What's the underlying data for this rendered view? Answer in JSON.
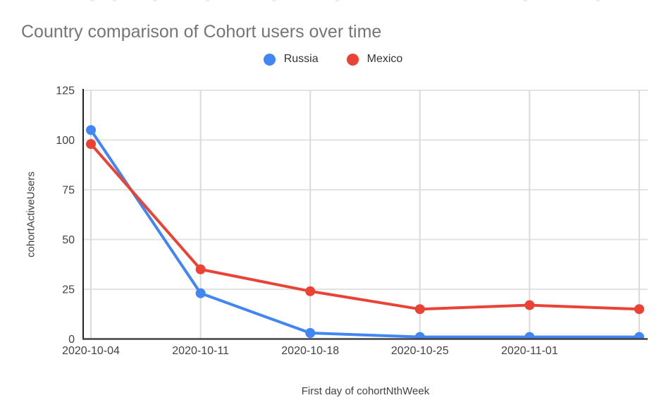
{
  "page": {
    "background": "#ffffff"
  },
  "chart": {
    "title": "Country comparison of Cohort users over time",
    "title_color": "#757575",
    "x_axis_title": "First day of cohortNthWeek",
    "y_axis_title": "cohortActiveUsers"
  },
  "legend": {
    "position": "top-center",
    "items": [
      {
        "label": "Russia",
        "color": "#4285f4"
      },
      {
        "label": "Mexico",
        "color": "#ea4335"
      }
    ]
  },
  "chart_data": {
    "type": "line",
    "title": "Country comparison of Cohort users over time",
    "xlabel": "First day of cohortNthWeek",
    "ylabel": "cohortActiveUsers",
    "categories": [
      "2020-10-04",
      "2020-10-11",
      "2020-10-18",
      "2020-10-25",
      "2020-11-01",
      ""
    ],
    "series": [
      {
        "name": "Russia",
        "color": "#4285f4",
        "values": [
          105,
          23,
          3,
          1,
          1,
          1
        ]
      },
      {
        "name": "Mexico",
        "color": "#ea4335",
        "values": [
          98,
          35,
          24,
          15,
          17,
          15
        ]
      }
    ],
    "ylim": [
      0,
      125
    ],
    "yticks": [
      0,
      25,
      50,
      75,
      100,
      125
    ],
    "grid": true,
    "legend_position": "top",
    "marker": "circle",
    "colors": {
      "grid": "#e3e3e3",
      "axis": "#212121",
      "tick_label": "#424242"
    }
  }
}
